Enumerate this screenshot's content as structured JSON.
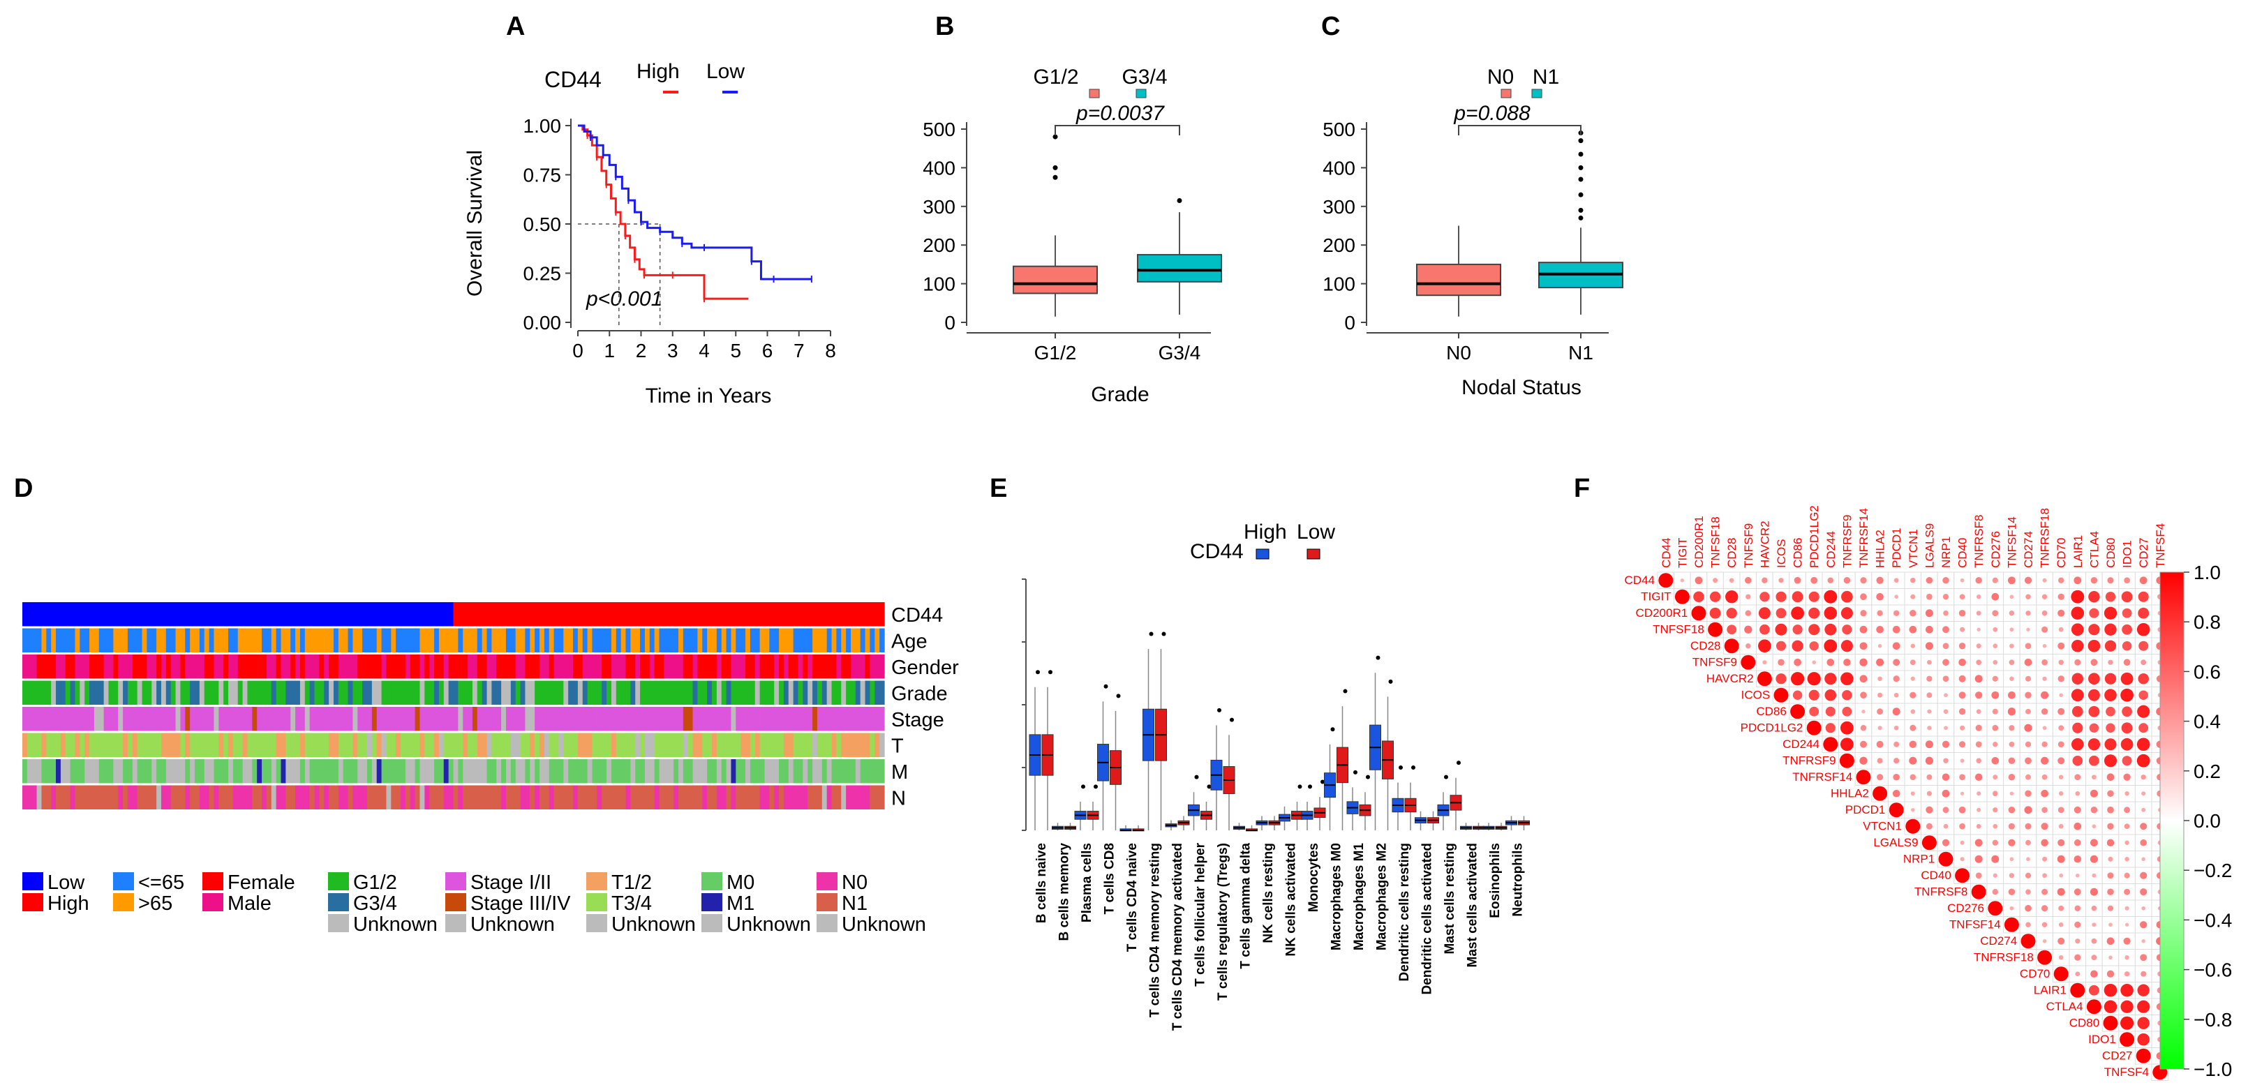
{
  "figure": {
    "panel_labels": [
      "A",
      "B",
      "C",
      "D",
      "E",
      "F"
    ],
    "colors": {
      "high": "#ff1a1a",
      "low": "#1a1aff",
      "box_a": "#f8766d",
      "box_b": "#00bfc4",
      "e_high": "#1a55e0",
      "e_low": "#e01a1a",
      "corr_pos": "#ff0000",
      "corr_neg": "#00ff00"
    }
  },
  "chart_data": [
    {
      "id": "A",
      "type": "line",
      "title": "CD44",
      "xlabel": "Time in Years",
      "ylabel": "Overall Survival",
      "xlim": [
        0,
        8
      ],
      "ylim": [
        0,
        1
      ],
      "x_ticks": [
        "0",
        "1",
        "2",
        "3",
        "4",
        "5",
        "6",
        "7",
        "8"
      ],
      "y_ticks": [
        "0.00",
        "0.25",
        "0.50",
        "0.75",
        "1.00"
      ],
      "annotation": "p<0.001",
      "legend": [
        "High",
        "Low"
      ],
      "median_lines": [
        1.3,
        2.6
      ],
      "series": [
        {
          "name": "High",
          "color": "#ff1a1a",
          "x": [
            0,
            0.15,
            0.3,
            0.45,
            0.6,
            0.75,
            0.9,
            1.05,
            1.2,
            1.35,
            1.5,
            1.65,
            1.8,
            1.95,
            2.1,
            2.5,
            3.0,
            3.9,
            4.0,
            5.4
          ],
          "y": [
            1,
            0.98,
            0.95,
            0.9,
            0.84,
            0.77,
            0.7,
            0.63,
            0.56,
            0.5,
            0.44,
            0.38,
            0.32,
            0.27,
            0.24,
            0.24,
            0.24,
            0.24,
            0.12,
            0.12
          ]
        },
        {
          "name": "Low",
          "color": "#1a1aff",
          "x": [
            0,
            0.2,
            0.4,
            0.6,
            0.8,
            1.0,
            1.2,
            1.4,
            1.6,
            1.8,
            2.0,
            2.2,
            2.6,
            3.0,
            3.3,
            3.6,
            4.0,
            5.0,
            5.5,
            5.8,
            6.2,
            7.2,
            7.4
          ],
          "y": [
            1,
            0.97,
            0.94,
            0.9,
            0.85,
            0.8,
            0.74,
            0.68,
            0.62,
            0.56,
            0.51,
            0.48,
            0.46,
            0.43,
            0.4,
            0.38,
            0.38,
            0.38,
            0.31,
            0.22,
            0.22,
            0.22,
            0.22
          ]
        }
      ]
    },
    {
      "id": "B",
      "type": "box",
      "xlabel": "Grade",
      "ylim": [
        0,
        500
      ],
      "y_ticks": [
        "0",
        "100",
        "200",
        "300",
        "400",
        "500"
      ],
      "legend": [
        "G1/2",
        "G3/4"
      ],
      "annotation": "p=0.0037",
      "groups": [
        {
          "name": "G1/2",
          "min": 15,
          "q1": 75,
          "median": 100,
          "q3": 145,
          "max": 225,
          "outliers": [
            375,
            400,
            480
          ]
        },
        {
          "name": "G3/4",
          "min": 20,
          "q1": 105,
          "median": 135,
          "q3": 175,
          "max": 285,
          "outliers": [
            315
          ]
        }
      ]
    },
    {
      "id": "C",
      "type": "box",
      "xlabel": "Nodal Status",
      "ylim": [
        0,
        500
      ],
      "y_ticks": [
        "0",
        "100",
        "200",
        "300",
        "400",
        "500"
      ],
      "legend": [
        "N0",
        "N1"
      ],
      "annotation": "p=0.088",
      "groups": [
        {
          "name": "N0",
          "min": 15,
          "q1": 70,
          "median": 100,
          "q3": 150,
          "max": 250,
          "outliers": []
        },
        {
          "name": "N1",
          "min": 20,
          "q1": 90,
          "median": 125,
          "q3": 155,
          "max": 245,
          "outliers": [
            270,
            290,
            330,
            370,
            400,
            435,
            470,
            490
          ]
        }
      ]
    },
    {
      "id": "D",
      "type": "heatmap",
      "row_labels": [
        "CD44",
        "Age",
        "Gender",
        "Grade",
        "Stage",
        "T",
        "M",
        "N"
      ],
      "n_samples": 180,
      "legend": [
        [
          {
            "label": "Low",
            "color": "#0000ff"
          },
          {
            "label": "High",
            "color": "#ff0000"
          }
        ],
        [
          {
            "label": "<=65",
            "color": "#1e7fff"
          },
          {
            "label": ">65",
            "color": "#ff9a00"
          }
        ],
        [
          {
            "label": "Female",
            "color": "#ff0000"
          },
          {
            "label": "Male",
            "color": "#ee1088"
          }
        ],
        [
          {
            "label": "G1/2",
            "color": "#20bb20"
          },
          {
            "label": "G3/4",
            "color": "#286ea0"
          },
          {
            "label": "Unknown",
            "color": "#bbbbbb"
          }
        ],
        [
          {
            "label": "Stage I/II",
            "color": "#dd55dd"
          },
          {
            "label": "Stage III/IV",
            "color": "#c84a0a"
          },
          {
            "label": "Unknown",
            "color": "#bbbbbb"
          }
        ],
        [
          {
            "label": "T1/2",
            "color": "#f4a060"
          },
          {
            "label": "T3/4",
            "color": "#99dd55"
          },
          {
            "label": "Unknown",
            "color": "#bbbbbb"
          }
        ],
        [
          {
            "label": "M0",
            "color": "#66cc66"
          },
          {
            "label": "M1",
            "color": "#2222aa"
          },
          {
            "label": "Unknown",
            "color": "#bbbbbb"
          }
        ],
        [
          {
            "label": "N0",
            "color": "#ee33aa"
          },
          {
            "label": "N1",
            "color": "#d8604a"
          },
          {
            "label": "Unknown",
            "color": "#bbbbbb"
          }
        ]
      ]
    },
    {
      "id": "E",
      "type": "box",
      "title": "CD44",
      "legend": [
        "High",
        "Low"
      ],
      "ylim": [
        0,
        1
      ],
      "categories": [
        "B cells naive",
        "B cells memory",
        "Plasma cells",
        "T cells CD8",
        "T cells CD4 naive",
        "T cells CD4 memory resting",
        "T cells CD4 memory activated",
        "T cells follicular helper",
        "T cells regulatory (Tregs)",
        "T cells gamma delta",
        "NK cells resting",
        "NK cells activated",
        "Monocytes",
        "Macrophages M0",
        "Macrophages M1",
        "Macrophages M2",
        "Dendritic cells resting",
        "Dendritic cells activated",
        "Mast cells resting",
        "Mast cells activated",
        "Eosinophils",
        "Neutrophils"
      ],
      "series": [
        {
          "name": "High",
          "median": [
            0.3,
            0.01,
            0.06,
            0.27,
            0.0,
            0.38,
            0.02,
            0.08,
            0.22,
            0.01,
            0.03,
            0.05,
            0.06,
            0.18,
            0.09,
            0.33,
            0.1,
            0.04,
            0.08,
            0.01,
            0.01,
            0.03
          ]
        },
        {
          "name": "Low",
          "median": [
            0.3,
            0.01,
            0.06,
            0.25,
            0.0,
            0.38,
            0.03,
            0.06,
            0.2,
            0.0,
            0.03,
            0.06,
            0.07,
            0.26,
            0.08,
            0.28,
            0.1,
            0.04,
            0.11,
            0.01,
            0.01,
            0.03
          ]
        }
      ]
    },
    {
      "id": "F",
      "type": "heatmap",
      "variables": [
        "CD44",
        "TIGIT",
        "CD200R1",
        "TNFSF18",
        "CD28",
        "TNFSF9",
        "HAVCR2",
        "ICOS",
        "CD86",
        "PDCD1LG2",
        "CD244",
        "TNFRSF9",
        "TNFRSF14",
        "HHLA2",
        "PDCD1",
        "VTCN1",
        "LGALS9",
        "NRP1",
        "CD40",
        "TNFRSF8",
        "CD276",
        "TNFSF14",
        "CD274",
        "TNFRSF18",
        "CD70",
        "LAIR1",
        "CTLA4",
        "CD80",
        "IDO1",
        "CD27",
        "TNFSF4"
      ],
      "colorbar_ticks": [
        "1.0",
        "0.8",
        "0.6",
        "0.4",
        "0.2",
        "0.0",
        "−0.2",
        "−0.4",
        "−0.6",
        "−0.8",
        "−1.0"
      ],
      "clim": [
        -1,
        1
      ]
    }
  ]
}
